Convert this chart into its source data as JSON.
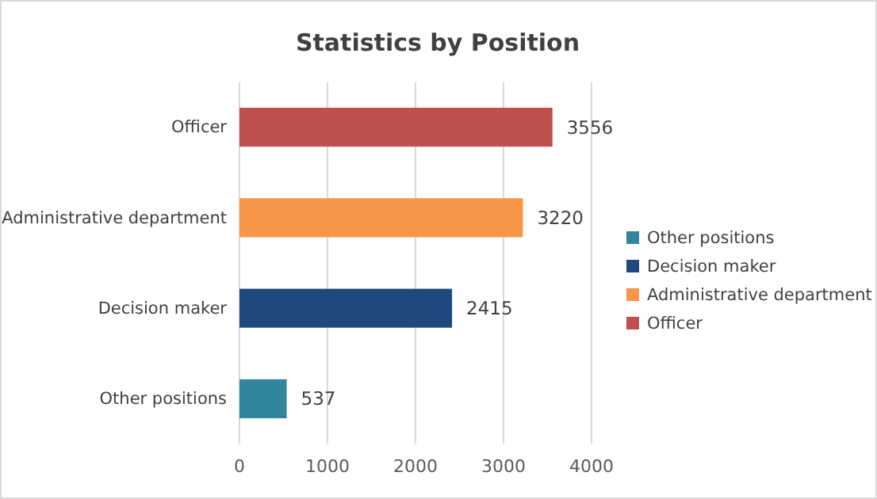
{
  "chart_data": {
    "type": "bar",
    "orientation": "horizontal",
    "stacked": true,
    "title": "Statistics by Position",
    "categories": [
      "Officer",
      "Administrative department",
      "Decision maker",
      "Other positions"
    ],
    "series": [
      {
        "name": "Other positions",
        "color": "#31859c",
        "values": [
          null,
          null,
          null,
          537
        ]
      },
      {
        "name": "Decision maker",
        "color": "#1f497d",
        "values": [
          null,
          null,
          2415,
          null
        ]
      },
      {
        "name": "Administrative department",
        "color": "#f79646",
        "values": [
          null,
          3220,
          null,
          null
        ]
      },
      {
        "name": "Officer",
        "color": "#c0504d",
        "values": [
          3556,
          null,
          null,
          null
        ]
      }
    ],
    "xlim": [
      0,
      4000
    ],
    "xticks": [
      0,
      1000,
      2000,
      3000,
      4000
    ],
    "grid": "x",
    "data_labels": true,
    "legend": "right"
  }
}
